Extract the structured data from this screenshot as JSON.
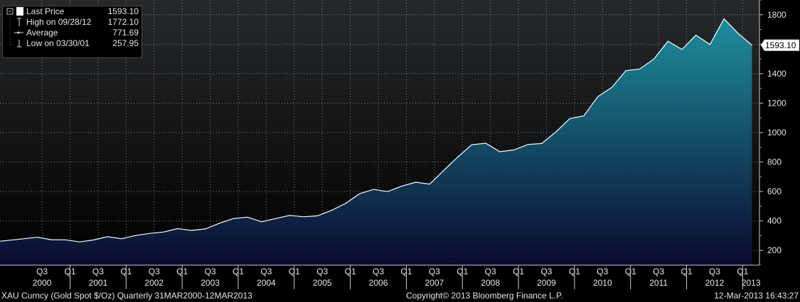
{
  "legend": {
    "rows": [
      {
        "icon": "last-price-swatch",
        "label": "Last Price",
        "value": "1593.10"
      },
      {
        "icon": "high-marker",
        "label": "High on 09/28/12",
        "value": "1772.10"
      },
      {
        "icon": "average-line",
        "label": "Average",
        "value": "771.69"
      },
      {
        "icon": "low-marker",
        "label": "Low on 03/30/01",
        "value": "257.95"
      }
    ]
  },
  "last_price_tag": "1593.10",
  "footer": {
    "left": "XAU Curncy (Gold Spot  $/Oz)  Quarterly 31MAR2000-12MAR2013",
    "center": "Copyright© 2013 Bloomberg Finance L.P.",
    "right": "12-Mar-2013 16:43:27"
  },
  "colors": {
    "background_top": "#26292c",
    "background_bottom": "#000000",
    "area_top": "#1e8e9d",
    "area_bottom": "#0a0a2e",
    "line": "#ffffff",
    "grid": "#8a8a8a"
  },
  "chart_data": {
    "type": "area",
    "title": "",
    "xlabel": "",
    "ylabel": "",
    "ylim": [
      100,
      1900
    ],
    "yticks": [
      200,
      400,
      600,
      800,
      1000,
      1200,
      1400,
      1600,
      1800
    ],
    "grid": true,
    "y_axis_side": "right",
    "quarter_ticks": [
      "Q3",
      "Q1",
      "Q3",
      "Q1",
      "Q3",
      "Q1",
      "Q3",
      "Q1",
      "Q3",
      "Q1",
      "Q3",
      "Q1",
      "Q3",
      "Q1",
      "Q3",
      "Q1",
      "Q3",
      "Q1",
      "Q3",
      "Q1",
      "Q3",
      "Q1",
      "Q3",
      "Q1",
      "Q3",
      "Q1"
    ],
    "year_labels": [
      "2000",
      "2001",
      "2002",
      "2003",
      "2004",
      "2005",
      "2006",
      "2007",
      "2008",
      "2009",
      "2010",
      "2011",
      "2012",
      "2013"
    ],
    "series": [
      {
        "values": [
          {
            "x": "2000-03",
            "y": 279
          },
          {
            "x": "2000-06",
            "y": 289
          },
          {
            "x": "2000-09",
            "y": 273
          },
          {
            "x": "2000-12",
            "y": 272
          },
          {
            "x": "2001-03",
            "y": 258
          },
          {
            "x": "2001-06",
            "y": 271
          },
          {
            "x": "2001-09",
            "y": 293
          },
          {
            "x": "2001-12",
            "y": 279
          },
          {
            "x": "2002-03",
            "y": 301
          },
          {
            "x": "2002-06",
            "y": 315
          },
          {
            "x": "2002-09",
            "y": 325
          },
          {
            "x": "2002-12",
            "y": 348
          },
          {
            "x": "2003-03",
            "y": 336
          },
          {
            "x": "2003-06",
            "y": 346
          },
          {
            "x": "2003-09",
            "y": 385
          },
          {
            "x": "2003-12",
            "y": 416
          },
          {
            "x": "2004-03",
            "y": 426
          },
          {
            "x": "2004-06",
            "y": 394
          },
          {
            "x": "2004-09",
            "y": 416
          },
          {
            "x": "2004-12",
            "y": 438
          },
          {
            "x": "2005-03",
            "y": 428
          },
          {
            "x": "2005-06",
            "y": 435
          },
          {
            "x": "2005-09",
            "y": 472
          },
          {
            "x": "2005-12",
            "y": 519
          },
          {
            "x": "2006-03",
            "y": 585
          },
          {
            "x": "2006-06",
            "y": 614
          },
          {
            "x": "2006-09",
            "y": 599
          },
          {
            "x": "2006-12",
            "y": 636
          },
          {
            "x": "2007-03",
            "y": 663
          },
          {
            "x": "2007-06",
            "y": 650
          },
          {
            "x": "2007-09",
            "y": 743
          },
          {
            "x": "2007-12",
            "y": 834
          },
          {
            "x": "2008-03",
            "y": 917
          },
          {
            "x": "2008-06",
            "y": 928
          },
          {
            "x": "2008-09",
            "y": 870
          },
          {
            "x": "2008-12",
            "y": 882
          },
          {
            "x": "2009-03",
            "y": 919
          },
          {
            "x": "2009-06",
            "y": 926
          },
          {
            "x": "2009-09",
            "y": 1004
          },
          {
            "x": "2009-12",
            "y": 1095
          },
          {
            "x": "2010-03",
            "y": 1113
          },
          {
            "x": "2010-06",
            "y": 1244
          },
          {
            "x": "2010-09",
            "y": 1307
          },
          {
            "x": "2010-12",
            "y": 1420
          },
          {
            "x": "2011-03",
            "y": 1432
          },
          {
            "x": "2011-06",
            "y": 1500
          },
          {
            "x": "2011-09",
            "y": 1620
          },
          {
            "x": "2011-12",
            "y": 1564
          },
          {
            "x": "2012-03",
            "y": 1662
          },
          {
            "x": "2012-06",
            "y": 1598
          },
          {
            "x": "2012-09",
            "y": 1772
          },
          {
            "x": "2012-12",
            "y": 1675
          },
          {
            "x": "2013-03",
            "y": 1593
          }
        ]
      }
    ]
  }
}
